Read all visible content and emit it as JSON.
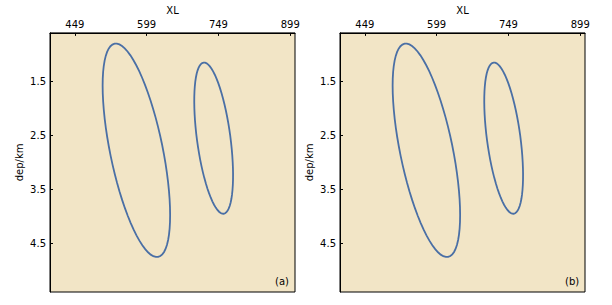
{
  "chart_data": [
    {
      "type": "seismic_section",
      "panel_label": "(a)",
      "x_label": "XL",
      "y_label": "dep/km",
      "xlim": [
        397,
        909
      ],
      "ylim": [
        0.6,
        5.4
      ],
      "xticks": [
        449,
        599,
        749,
        899
      ],
      "yticks": [
        1.5,
        2.5,
        3.5,
        4.5
      ],
      "ellipses": [
        {
          "ends": [
            [
              532,
              0.8
            ],
            [
              623,
              4.75
            ]
          ],
          "half_width": 55,
          "color": "#4a6fa5"
        },
        {
          "ends": [
            [
              718,
              1.15
            ],
            [
              760,
              3.95
            ]
          ],
          "half_width": 35,
          "color": "#4a6fa5"
        }
      ]
    },
    {
      "type": "seismic_section",
      "panel_label": "(b)",
      "x_label": "XL",
      "y_label": "dep/km",
      "xlim": [
        397,
        909
      ],
      "ylim": [
        0.6,
        5.4
      ],
      "xticks": [
        449,
        599,
        749,
        899
      ],
      "yticks": [
        1.5,
        2.5,
        3.5,
        4.5
      ],
      "ellipses": [
        {
          "ends": [
            [
              532,
              0.8
            ],
            [
              623,
              4.75
            ]
          ],
          "half_width": 55,
          "color": "#4a6fa5"
        },
        {
          "ends": [
            [
              718,
              1.15
            ],
            [
              760,
              3.95
            ]
          ],
          "half_width": 35,
          "color": "#4a6fa5"
        }
      ]
    }
  ]
}
